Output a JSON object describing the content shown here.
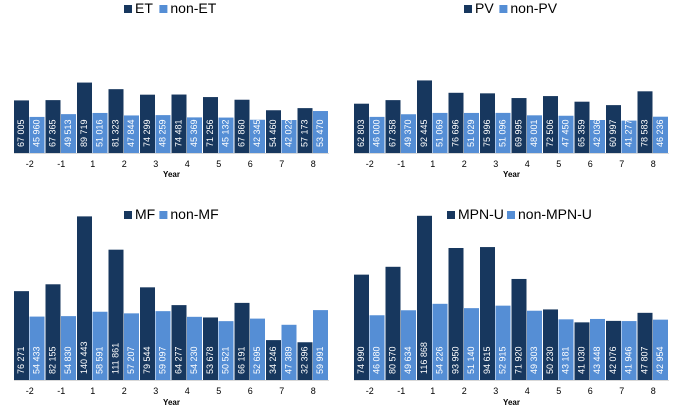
{
  "colors": {
    "dark": "#17375E",
    "light": "#558ED5"
  },
  "chart_data": [
    {
      "type": "bar",
      "categories": [
        "-2",
        "-1",
        "1",
        "2",
        "3",
        "4",
        "5",
        "6",
        "7",
        "8"
      ],
      "xlabel": "Year",
      "series": [
        {
          "name": "ET",
          "values": [
            67005,
            67365,
            89719,
            81323,
            74299,
            74481,
            71256,
            67860,
            54460,
            57173
          ],
          "labels": [
            "67 005",
            "67 365",
            "89 719",
            "81 323",
            "74 299",
            "74 481",
            "71 256",
            "67 860",
            "54 460",
            "57 173"
          ]
        },
        {
          "name": "non-ET",
          "values": [
            45960,
            49513,
            51016,
            47844,
            48259,
            45369,
            45132,
            42345,
            42022,
            53470
          ],
          "labels": [
            "45 960",
            "49 513",
            "51 016",
            "47 844",
            "48 259",
            "45 369",
            "45 132",
            "42 345",
            "42 022",
            "53 470"
          ]
        }
      ]
    },
    {
      "type": "bar",
      "categories": [
        "-2",
        "-1",
        "1",
        "2",
        "3",
        "4",
        "5",
        "6",
        "7",
        "8"
      ],
      "xlabel": "Year",
      "series": [
        {
          "name": "PV",
          "values": [
            62803,
            67358,
            92445,
            76696,
            75996,
            69995,
            72506,
            65359,
            60997,
            78583
          ],
          "labels": [
            "62 803",
            "67 358",
            "92 445",
            "76 696",
            "75 996",
            "69 995",
            "72 506",
            "65 359",
            "60 997",
            "78 583"
          ]
        },
        {
          "name": "non-PV",
          "values": [
            46000,
            49370,
            51069,
            51029,
            51096,
            48001,
            47450,
            42036,
            41277,
            46236
          ],
          "labels": [
            "46 000",
            "49 370",
            "51 069",
            "51 029",
            "51 096",
            "48 001",
            "47 450",
            "42 036",
            "41 277",
            "46 236"
          ]
        }
      ]
    },
    {
      "type": "bar",
      "categories": [
        "-2",
        "-1",
        "1",
        "2",
        "3",
        "4",
        "5",
        "6",
        "7",
        "8"
      ],
      "xlabel": "Year",
      "series": [
        {
          "name": "MF",
          "values": [
            76271,
            82155,
            140443,
            111861,
            79544,
            64277,
            53678,
            66191,
            34246,
            32396
          ],
          "labels": [
            "76 271",
            "82 155",
            "140 443",
            "111 861",
            "79 544",
            "64 277",
            "53 678",
            "66 191",
            "34 246",
            "32 396"
          ]
        },
        {
          "name": "non-MF",
          "values": [
            54433,
            54830,
            58591,
            57207,
            59097,
            54230,
            50521,
            52695,
            47389,
            59991
          ],
          "labels": [
            "54 433",
            "54 830",
            "58 591",
            "57 207",
            "59 097",
            "54 230",
            "50 521",
            "52 695",
            "47 389",
            "59 991"
          ]
        }
      ]
    },
    {
      "type": "bar",
      "categories": [
        "-2",
        "-1",
        "1",
        "2",
        "3",
        "4",
        "5",
        "6",
        "7",
        "8"
      ],
      "xlabel": "Year",
      "series": [
        {
          "name": "MPN-U",
          "values": [
            74990,
            80570,
            116868,
            93950,
            94615,
            71920,
            50230,
            41030,
            42076,
            47807
          ],
          "labels": [
            "74 990",
            "80 570",
            "116 868",
            "93 950",
            "94 615",
            "71 920",
            "50 230",
            "41 030",
            "42 076",
            "47 807"
          ]
        },
        {
          "name": "non-MPN-U",
          "values": [
            46080,
            49634,
            54226,
            51140,
            52915,
            49303,
            43181,
            43448,
            41946,
            42954
          ],
          "labels": [
            "46 080",
            "49 634",
            "54 226",
            "51 140",
            "52 915",
            "49 303",
            "43 181",
            "43 448",
            "41 946",
            "42 954"
          ]
        }
      ]
    }
  ]
}
